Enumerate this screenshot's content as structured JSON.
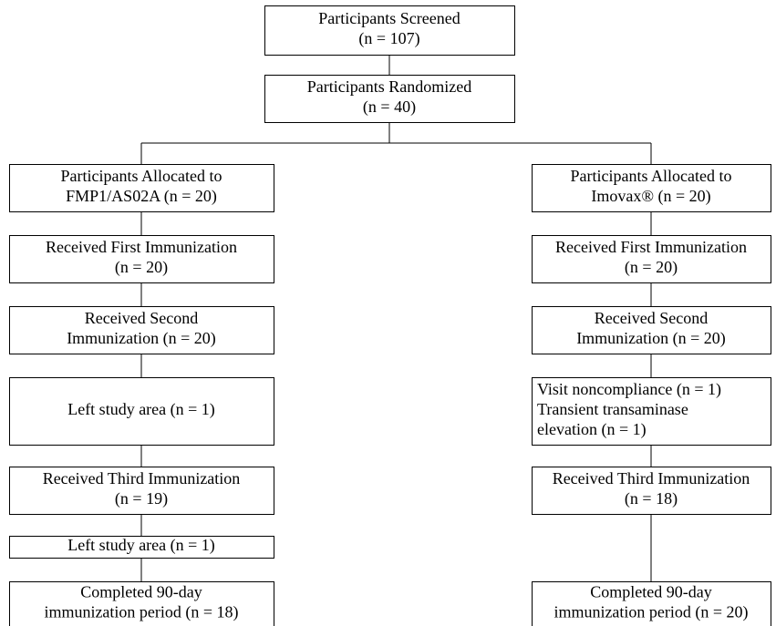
{
  "nodes": [
    {
      "lines": [
        "Participants Screened",
        "(n = 107)"
      ]
    },
    {
      "lines": [
        "Participants Randomized",
        "(n = 40)"
      ]
    },
    {
      "lines": [
        "Participants Allocated to",
        "FMP1/AS02A (n = 20)"
      ]
    },
    {
      "lines": [
        "Participants Allocated to",
        "Imovax® (n = 20)"
      ]
    },
    {
      "lines": [
        "Received First Immunization",
        "(n = 20)"
      ]
    },
    {
      "lines": [
        "Received First Immunization",
        "(n = 20)"
      ]
    },
    {
      "lines": [
        "Received Second",
        "Immunization (n = 20)"
      ]
    },
    {
      "lines": [
        "Received Second",
        "Immunization (n = 20)"
      ]
    },
    {
      "lines": [
        "Left study area (n = 1)"
      ]
    },
    {
      "lines": [
        "Visit noncompliance (n = 1)",
        "Transient transaminase",
        "elevation (n = 1)"
      ]
    },
    {
      "lines": [
        "Received Third Immunization",
        "(n = 19)"
      ]
    },
    {
      "lines": [
        "Received Third Immunization",
        "(n = 18)"
      ]
    },
    {
      "lines": [
        "Left study area (n = 1)"
      ]
    },
    {
      "lines": [
        "Completed 90-day",
        "immunization period (n = 18)"
      ]
    },
    {
      "lines": [
        "Completed 90-day",
        "immunization period (n = 20)"
      ]
    }
  ]
}
